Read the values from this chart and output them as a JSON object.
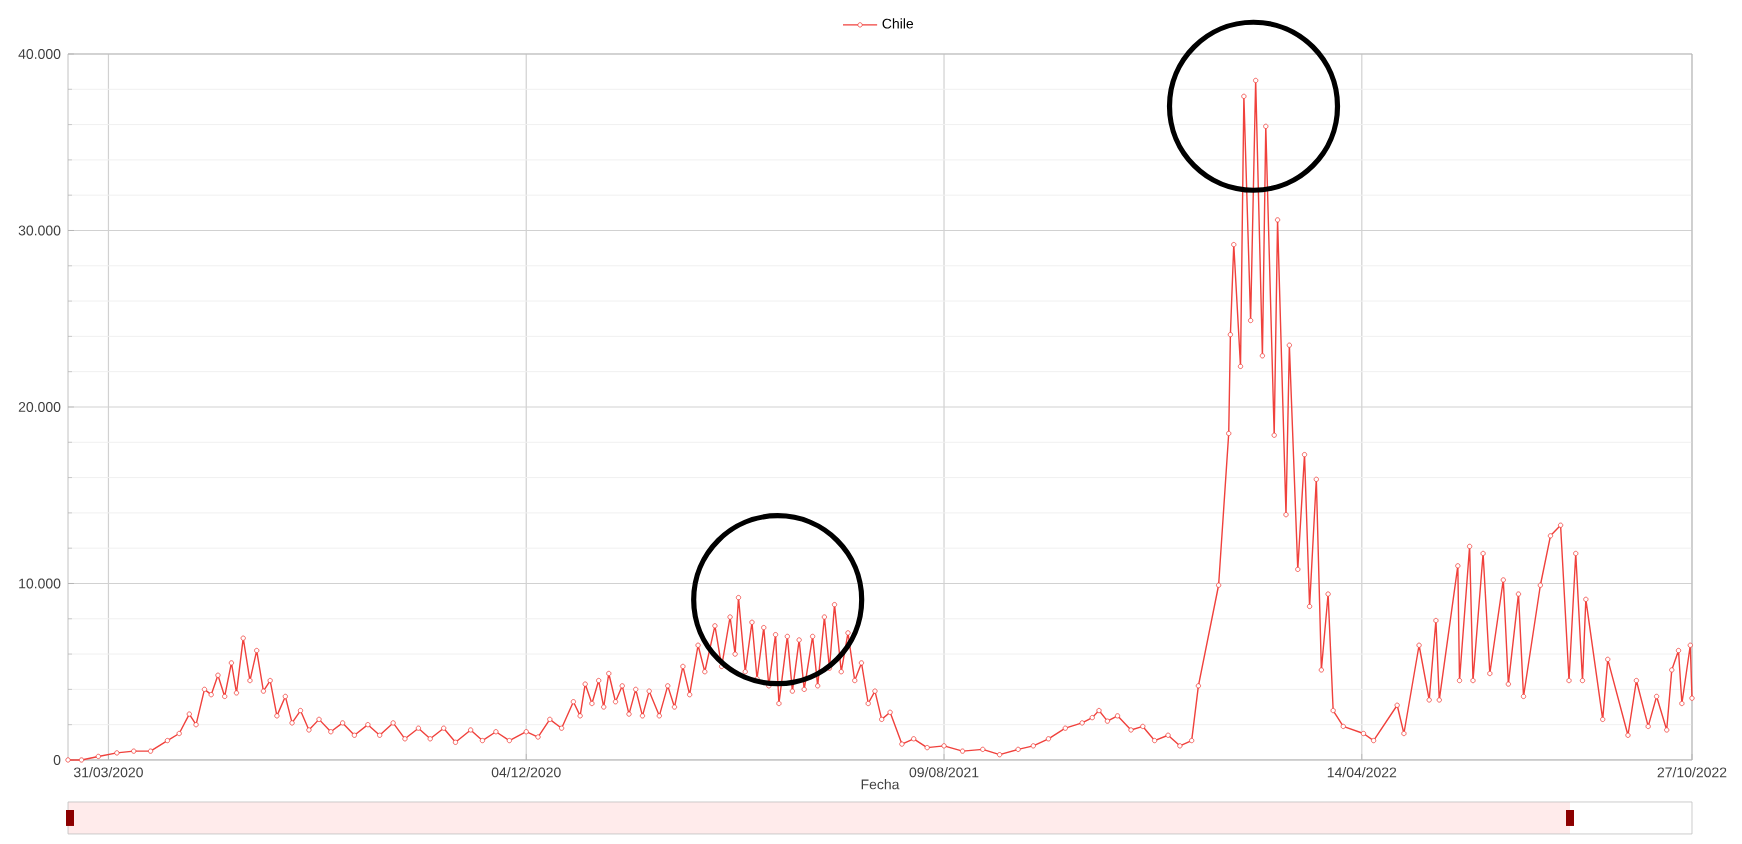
{
  "chart_data": {
    "type": "line",
    "xlabel": "Fecha",
    "legend": "top",
    "grid": true,
    "marker": "circle",
    "line_style": "solid",
    "xlim": [
      "2020-03-07",
      "2022-10-27"
    ],
    "xticks": [
      {
        "value": "2020-03-31",
        "label": "31/03/2020"
      },
      {
        "value": "2020-12-04",
        "label": "04/12/2020"
      },
      {
        "value": "2021-08-09",
        "label": "09/08/2021"
      },
      {
        "value": "2022-04-14",
        "label": "14/04/2022"
      },
      {
        "value": "2022-10-27",
        "label": "27/10/2022"
      }
    ],
    "ylim": [
      0,
      40000
    ],
    "yticks": [
      {
        "value": 0,
        "label": "0"
      },
      {
        "value": 10000,
        "label": "10.000"
      },
      {
        "value": 20000,
        "label": "20.000"
      },
      {
        "value": 30000,
        "label": "30.000"
      },
      {
        "value": 40000,
        "label": "40.000"
      }
    ],
    "x": [
      "2020-03-07",
      "2020-03-15",
      "2020-03-25",
      "2020-04-05",
      "2020-04-15",
      "2020-04-25",
      "2020-05-05",
      "2020-05-12",
      "2020-05-18",
      "2020-05-22",
      "2020-05-27",
      "2020-05-31",
      "2020-06-04",
      "2020-06-08",
      "2020-06-12",
      "2020-06-15",
      "2020-06-19",
      "2020-06-23",
      "2020-06-27",
      "2020-07-01",
      "2020-07-05",
      "2020-07-09",
      "2020-07-14",
      "2020-07-18",
      "2020-07-23",
      "2020-07-28",
      "2020-08-03",
      "2020-08-10",
      "2020-08-17",
      "2020-08-24",
      "2020-09-01",
      "2020-09-08",
      "2020-09-16",
      "2020-09-23",
      "2020-10-01",
      "2020-10-08",
      "2020-10-16",
      "2020-10-23",
      "2020-11-01",
      "2020-11-08",
      "2020-11-16",
      "2020-11-24",
      "2020-12-04",
      "2020-12-11",
      "2020-12-18",
      "2020-12-25",
      "2021-01-01",
      "2021-01-05",
      "2021-01-08",
      "2021-01-12",
      "2021-01-16",
      "2021-01-19",
      "2021-01-22",
      "2021-01-26",
      "2021-01-30",
      "2021-02-03",
      "2021-02-07",
      "2021-02-11",
      "2021-02-15",
      "2021-02-21",
      "2021-02-26",
      "2021-03-02",
      "2021-03-07",
      "2021-03-11",
      "2021-03-16",
      "2021-03-20",
      "2021-03-26",
      "2021-03-30",
      "2021-04-04",
      "2021-04-07",
      "2021-04-09",
      "2021-04-13",
      "2021-04-17",
      "2021-04-20",
      "2021-04-24",
      "2021-04-27",
      "2021-05-01",
      "2021-05-03",
      "2021-05-08",
      "2021-05-11",
      "2021-05-15",
      "2021-05-18",
      "2021-05-23",
      "2021-05-26",
      "2021-05-30",
      "2021-06-02",
      "2021-06-05",
      "2021-06-09",
      "2021-06-13",
      "2021-06-17",
      "2021-06-21",
      "2021-06-25",
      "2021-06-29",
      "2021-07-03",
      "2021-07-08",
      "2021-07-15",
      "2021-07-22",
      "2021-07-30",
      "2021-08-09",
      "2021-08-20",
      "2021-09-01",
      "2021-09-11",
      "2021-09-22",
      "2021-10-01",
      "2021-10-10",
      "2021-10-20",
      "2021-10-30",
      "2021-11-05",
      "2021-11-09",
      "2021-11-14",
      "2021-11-20",
      "2021-11-28",
      "2021-12-05",
      "2021-12-12",
      "2021-12-20",
      "2021-12-27",
      "2022-01-03",
      "2022-01-07",
      "2022-01-19",
      "2022-01-25",
      "2022-01-26",
      "2022-01-28",
      "2022-02-01",
      "2022-02-03",
      "2022-02-07",
      "2022-02-10",
      "2022-02-14",
      "2022-02-16",
      "2022-02-21",
      "2022-02-23",
      "2022-02-28",
      "2022-03-02",
      "2022-03-07",
      "2022-03-11",
      "2022-03-14",
      "2022-03-18",
      "2022-03-21",
      "2022-03-25",
      "2022-03-28",
      "2022-04-03",
      "2022-04-15",
      "2022-04-21",
      "2022-05-05",
      "2022-05-09",
      "2022-05-18",
      "2022-05-24",
      "2022-05-28",
      "2022-05-30",
      "2022-06-10",
      "2022-06-11",
      "2022-06-17",
      "2022-06-19",
      "2022-06-25",
      "2022-06-29",
      "2022-07-07",
      "2022-07-10",
      "2022-07-16",
      "2022-07-19",
      "2022-07-29",
      "2022-08-04",
      "2022-08-10",
      "2022-08-15",
      "2022-08-19",
      "2022-08-23",
      "2022-08-25",
      "2022-09-04",
      "2022-09-07",
      "2022-09-19",
      "2022-09-24",
      "2022-10-01",
      "2022-10-06",
      "2022-10-12",
      "2022-10-15",
      "2022-10-19",
      "2022-10-21",
      "2022-10-26",
      "2022-10-27"
    ],
    "series": [
      {
        "name": "Chile",
        "color": "#f0413c",
        "values": [
          0,
          0,
          200,
          400,
          500,
          500,
          1100,
          1500,
          2600,
          2000,
          4000,
          3700,
          4800,
          3600,
          5500,
          3800,
          6900,
          4500,
          6200,
          3900,
          4500,
          2500,
          3600,
          2100,
          2800,
          1700,
          2300,
          1600,
          2100,
          1400,
          2000,
          1400,
          2100,
          1200,
          1800,
          1200,
          1800,
          1000,
          1700,
          1100,
          1600,
          1100,
          1600,
          1300,
          2300,
          1800,
          3300,
          2500,
          4300,
          3200,
          4500,
          3000,
          4900,
          3300,
          4200,
          2600,
          4000,
          2500,
          3900,
          2500,
          4200,
          3000,
          5300,
          3700,
          6500,
          5000,
          7600,
          5300,
          8100,
          6000,
          9200,
          5000,
          7800,
          4600,
          7500,
          4200,
          7100,
          3200,
          7000,
          3900,
          6800,
          4000,
          7000,
          4200,
          8100,
          5200,
          8800,
          5000,
          7200,
          4500,
          5500,
          3200,
          3900,
          2300,
          2700,
          900,
          1200,
          700,
          800,
          500,
          600,
          300,
          600,
          800,
          1200,
          1800,
          2100,
          2400,
          2800,
          2200,
          2500,
          1700,
          1900,
          1100,
          1400,
          800,
          1100,
          4200,
          9900,
          18500,
          24100,
          29200,
          22300,
          37600,
          24900,
          38500,
          22900,
          35900,
          18400,
          30600,
          13900,
          23500,
          10800,
          17300,
          8700,
          15900,
          5100,
          9400,
          2800,
          1900,
          1500,
          1100,
          3100,
          1500,
          6500,
          3400,
          7900,
          3400,
          11000,
          4500,
          12100,
          4500,
          11700,
          4900,
          10200,
          4300,
          9400,
          3600,
          9900,
          12700,
          13300,
          4500,
          11700,
          4500,
          9100,
          2300,
          5700,
          1400,
          4500,
          1900,
          3600,
          1700,
          5100,
          6200,
          3200,
          6500,
          3500
        ]
      }
    ]
  }
}
